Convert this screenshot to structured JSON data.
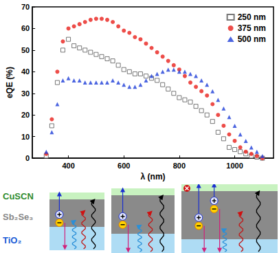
{
  "chart_data": {
    "type": "scatter",
    "x_label": "λ (nm)",
    "y_label": "eQE (%)",
    "xlim": [
      270,
      1140
    ],
    "xticks": [
      400,
      600,
      800,
      1000
    ],
    "ylim": [
      0,
      70
    ],
    "yticks": [
      0,
      10,
      20,
      30,
      40,
      50,
      60,
      70
    ],
    "grid": false,
    "legend": "upper right",
    "x": [
      320,
      340,
      360,
      380,
      400,
      420,
      440,
      460,
      480,
      500,
      520,
      540,
      560,
      580,
      600,
      620,
      640,
      660,
      680,
      700,
      720,
      740,
      760,
      780,
      800,
      820,
      840,
      860,
      880,
      900,
      920,
      940,
      960,
      980,
      1000,
      1020,
      1040,
      1060,
      1080,
      1100
    ],
    "series": [
      {
        "name": "250 nm",
        "color": "#555555",
        "marker": "square-open",
        "values": [
          1,
          15,
          35,
          50,
          55,
          52,
          51,
          50,
          49,
          48,
          47,
          46,
          45,
          43,
          41,
          40,
          39,
          39,
          38,
          37,
          36,
          34,
          32,
          30,
          28,
          27,
          26,
          24,
          22,
          20,
          17,
          12,
          9,
          5,
          4,
          3,
          2,
          1,
          0.5,
          0
        ]
      },
      {
        "name": "375 nm",
        "color": "#e8201c",
        "marker": "circle",
        "values": [
          2,
          18,
          40,
          54,
          60,
          61,
          62,
          63,
          64,
          64.5,
          64.5,
          64,
          63,
          61,
          59,
          58,
          56,
          55,
          53,
          51,
          49,
          47,
          45,
          43,
          41,
          38,
          35,
          33,
          31,
          29,
          25,
          20,
          15,
          11,
          8,
          5,
          3,
          2,
          1,
          0
        ]
      },
      {
        "name": "500 nm",
        "color": "#1f3fd8",
        "marker": "triangle",
        "values": [
          3,
          12,
          25,
          36,
          37,
          36,
          36,
          35,
          35,
          35,
          35,
          35,
          36,
          35,
          34,
          33,
          33,
          34,
          36,
          38,
          39,
          40,
          41,
          41,
          40,
          40,
          39,
          38,
          36,
          34,
          31,
          27,
          23,
          19,
          15,
          11,
          8,
          5,
          3,
          1
        ]
      }
    ]
  },
  "diagram": {
    "layers": [
      "CuSCN",
      "Sb₂Se₃",
      "TiO₂"
    ]
  }
}
